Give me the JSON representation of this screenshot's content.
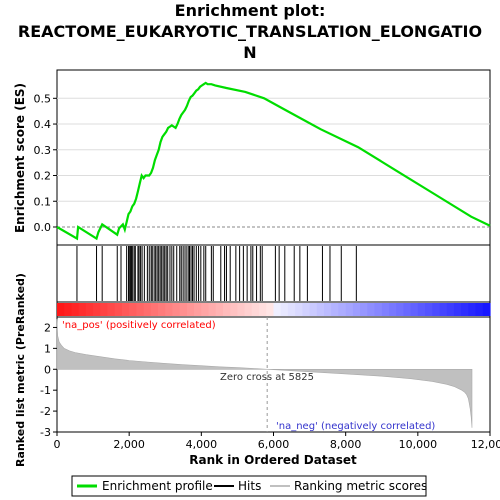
{
  "title_line1": "Enrichment plot:",
  "title_line2": "REACTOME_EUKARYOTIC_TRANSLATION_ELONGATIO",
  "title_line3": "N",
  "chart_data": [
    {
      "type": "line",
      "panel": "enrichment",
      "ylabel": "Enrichment score (ES)",
      "xlim": [
        0,
        11500
      ],
      "ylim": [
        -0.07,
        0.61
      ],
      "yticks": [
        "0.0",
        "0.1",
        "0.2",
        "0.3",
        "0.4",
        "0.5"
      ],
      "ytick_values": [
        0.0,
        0.1,
        0.2,
        0.3,
        0.4,
        0.5
      ],
      "grid": true,
      "series": [
        {
          "name": "Enrichment profile",
          "color": "#00dd00",
          "x": [
            0,
            530,
            560,
            1050,
            1100,
            1200,
            1600,
            1650,
            1750,
            1800,
            1850,
            1900,
            1950,
            2000,
            2050,
            2100,
            2150,
            2200,
            2250,
            2300,
            2350,
            2400,
            2450,
            2500,
            2550,
            2600,
            2650,
            2700,
            2750,
            2800,
            2850,
            2900,
            2950,
            3000,
            3050,
            3100,
            3150,
            3200,
            3250,
            3300,
            3350,
            3400,
            3450,
            3500,
            3550,
            3600,
            3650,
            3700,
            3750,
            3800,
            3850,
            3900,
            3950,
            4000,
            4100,
            4200,
            4500,
            5000,
            5500,
            6000,
            7000,
            8000,
            9000,
            10000,
            11000,
            11500
          ],
          "y": [
            0.0,
            -0.045,
            0.0,
            -0.045,
            -0.02,
            0.01,
            -0.03,
            -0.005,
            0.01,
            -0.01,
            0.02,
            0.05,
            0.06,
            0.08,
            0.09,
            0.11,
            0.14,
            0.17,
            0.2,
            0.19,
            0.2,
            0.2,
            0.2,
            0.21,
            0.23,
            0.26,
            0.28,
            0.3,
            0.33,
            0.35,
            0.36,
            0.37,
            0.385,
            0.39,
            0.395,
            0.39,
            0.385,
            0.4,
            0.42,
            0.435,
            0.445,
            0.455,
            0.47,
            0.49,
            0.505,
            0.51,
            0.52,
            0.53,
            0.535,
            0.545,
            0.55,
            0.555,
            0.56,
            0.555,
            0.555,
            0.55,
            0.54,
            0.525,
            0.5,
            0.46,
            0.38,
            0.31,
            0.22,
            0.13,
            0.04,
            0.005
          ]
        }
      ]
    },
    {
      "type": "scatter",
      "panel": "hits",
      "xlim": [
        0,
        11500
      ],
      "series": [
        {
          "name": "Hits",
          "color": "#000000",
          "x": [
            530,
            1050,
            1200,
            1600,
            1700,
            1850,
            1900,
            1920,
            1950,
            1980,
            2010,
            2050,
            2080,
            2150,
            2180,
            2220,
            2260,
            2320,
            2400,
            2450,
            2500,
            2530,
            2580,
            2620,
            2660,
            2700,
            2740,
            2780,
            2820,
            2860,
            2900,
            2940,
            3000,
            3050,
            3100,
            3180,
            3260,
            3300,
            3350,
            3400,
            3450,
            3500,
            3520,
            3560,
            3600,
            3640,
            3700,
            3760,
            3820,
            3900,
            3950,
            4100,
            4150,
            4350,
            4450,
            4500,
            4600,
            4750,
            4850,
            4950,
            5050,
            5150,
            5200,
            5300,
            5400,
            5450,
            5800,
            5900,
            6050,
            6300,
            6450,
            6650,
            7050,
            7250,
            7550,
            7950
          ]
        }
      ]
    },
    {
      "type": "area",
      "panel": "ranked-metric",
      "ylabel": "Ranked list metric (PreRanked)",
      "xlabel": "Rank in Ordered Dataset",
      "xlim": [
        0,
        12000
      ],
      "ylim": [
        -3,
        2.5
      ],
      "yticks": [
        "-3",
        "-2",
        "-1",
        "0",
        "1",
        "2"
      ],
      "ytick_values": [
        -3,
        -2,
        -1,
        0,
        1,
        2
      ],
      "xticks": [
        "0",
        "2,000",
        "4,000",
        "6,000",
        "8,000",
        "10,000",
        "12,000"
      ],
      "xtick_values": [
        0,
        2000,
        4000,
        6000,
        8000,
        10000,
        12000
      ],
      "series": [
        {
          "name": "Ranking metric scores",
          "color": "#c0c0c0",
          "x": [
            0,
            20,
            60,
            120,
            200,
            350,
            500,
            800,
            1200,
            1600,
            2000,
            2500,
            3000,
            3500,
            4000,
            4500,
            5000,
            5500,
            5825,
            6200,
            7000,
            8000,
            9000,
            9800,
            10400,
            10800,
            11000,
            11200,
            11300,
            11350,
            11400,
            11420,
            11450,
            11480,
            11500
          ],
          "y": [
            2.4,
            1.6,
            1.3,
            1.15,
            1.0,
            0.88,
            0.8,
            0.7,
            0.6,
            0.5,
            0.42,
            0.35,
            0.28,
            0.22,
            0.17,
            0.12,
            0.08,
            0.03,
            0.0,
            -0.04,
            -0.12,
            -0.22,
            -0.33,
            -0.45,
            -0.58,
            -0.72,
            -0.82,
            -0.98,
            -1.1,
            -1.2,
            -1.4,
            -1.6,
            -1.9,
            -2.3,
            -2.8
          ]
        }
      ],
      "annotations": [
        "Zero cross at 5825",
        "'na_pos' (positively correlated)",
        "'na_neg' (negatively correlated)"
      ],
      "zero_cross": 5825
    }
  ],
  "labels": {
    "zero_cross": "Zero cross at 5825",
    "na_pos": "'na_pos' (positively correlated)",
    "na_neg": "'na_neg' (negatively correlated)"
  },
  "legend": {
    "items": [
      {
        "label": "Enrichment profile",
        "color": "#00dd00"
      },
      {
        "label": "Hits",
        "color": "#000000"
      },
      {
        "label": "Ranking metric scores",
        "color": "#c0c0c0"
      }
    ]
  },
  "colors": {
    "es_line": "#00dd00",
    "na_pos": "#ff0000",
    "na_neg": "#3333cc",
    "metric_fill": "#c0c0c0"
  }
}
